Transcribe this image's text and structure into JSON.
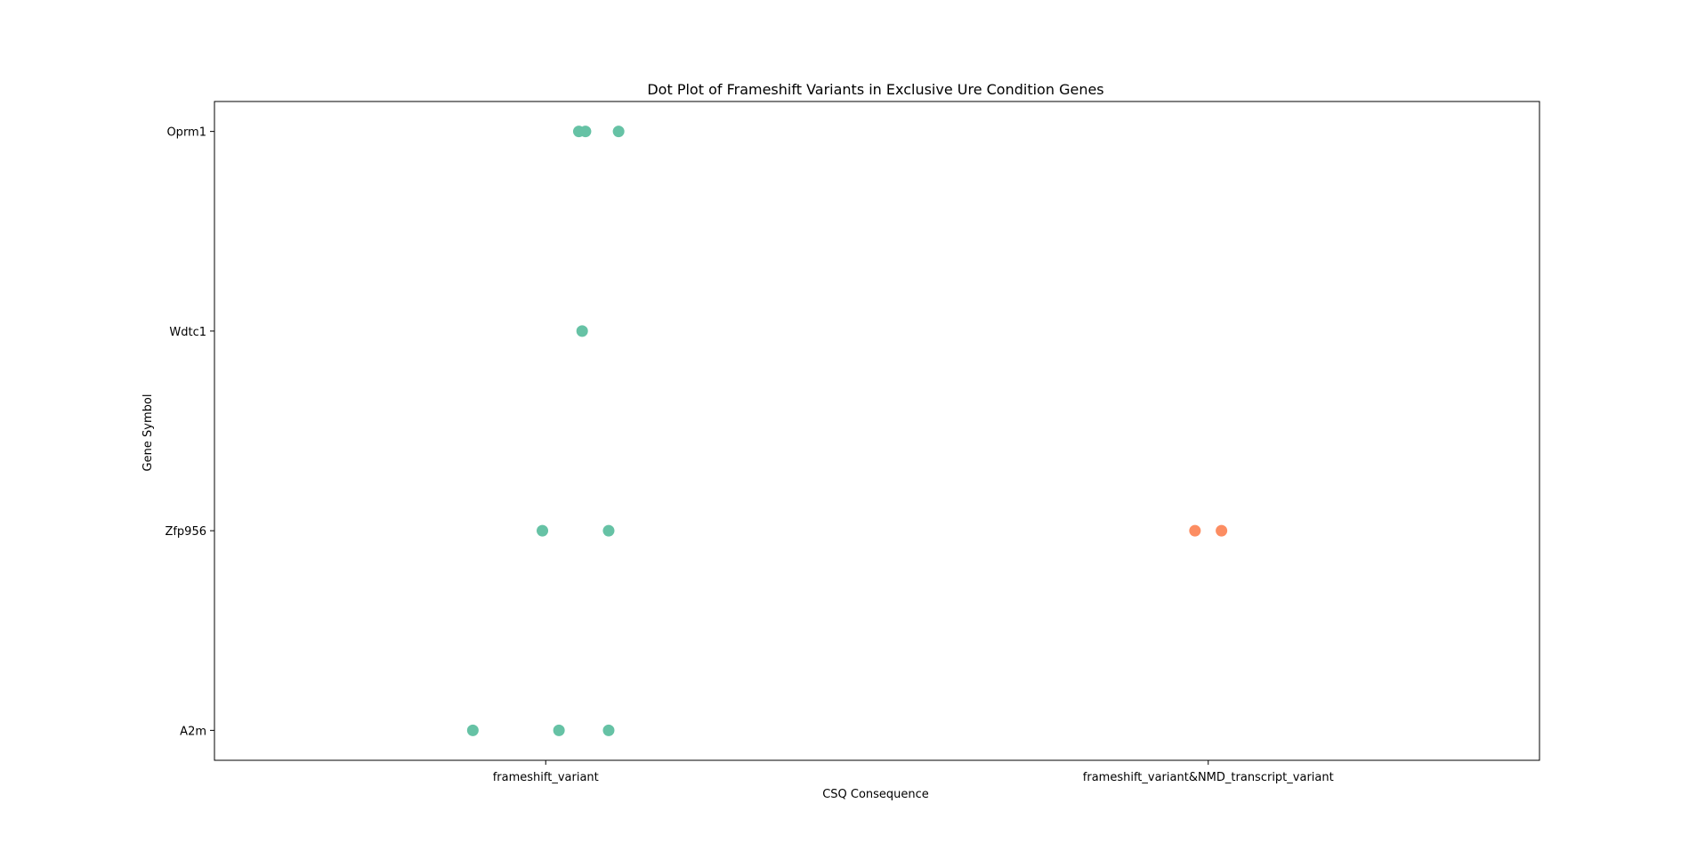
{
  "chart_data": {
    "type": "scatter",
    "title": "Dot Plot of Frameshift Variants in Exclusive Ure Condition Genes",
    "xlabel": "CSQ Consequence",
    "ylabel": "Gene Symbol",
    "x_categories": [
      "frameshift_variant",
      "frameshift_variant&NMD_transcript_variant"
    ],
    "y_categories": [
      "Oprm1",
      "Wdtc1",
      "Zfp956",
      "A2m"
    ],
    "grid": false,
    "legend": "none",
    "colors": {
      "frameshift_variant": "#66c2a5",
      "frameshift_variant&NMD_transcript_variant": "#fc8d62"
    },
    "points": [
      {
        "x": "frameshift_variant",
        "y": "Oprm1",
        "jitter": 0.05
      },
      {
        "x": "frameshift_variant",
        "y": "Oprm1",
        "jitter": 0.06
      },
      {
        "x": "frameshift_variant",
        "y": "Oprm1",
        "jitter": 0.11
      },
      {
        "x": "frameshift_variant",
        "y": "Wdtc1",
        "jitter": 0.055
      },
      {
        "x": "frameshift_variant",
        "y": "Zfp956",
        "jitter": -0.005
      },
      {
        "x": "frameshift_variant",
        "y": "Zfp956",
        "jitter": 0.095
      },
      {
        "x": "frameshift_variant",
        "y": "A2m",
        "jitter": -0.11
      },
      {
        "x": "frameshift_variant",
        "y": "A2m",
        "jitter": 0.02
      },
      {
        "x": "frameshift_variant",
        "y": "A2m",
        "jitter": 0.095
      },
      {
        "x": "frameshift_variant&NMD_transcript_variant",
        "y": "Zfp956",
        "jitter": -0.02
      },
      {
        "x": "frameshift_variant&NMD_transcript_variant",
        "y": "Zfp956",
        "jitter": 0.02
      }
    ]
  }
}
